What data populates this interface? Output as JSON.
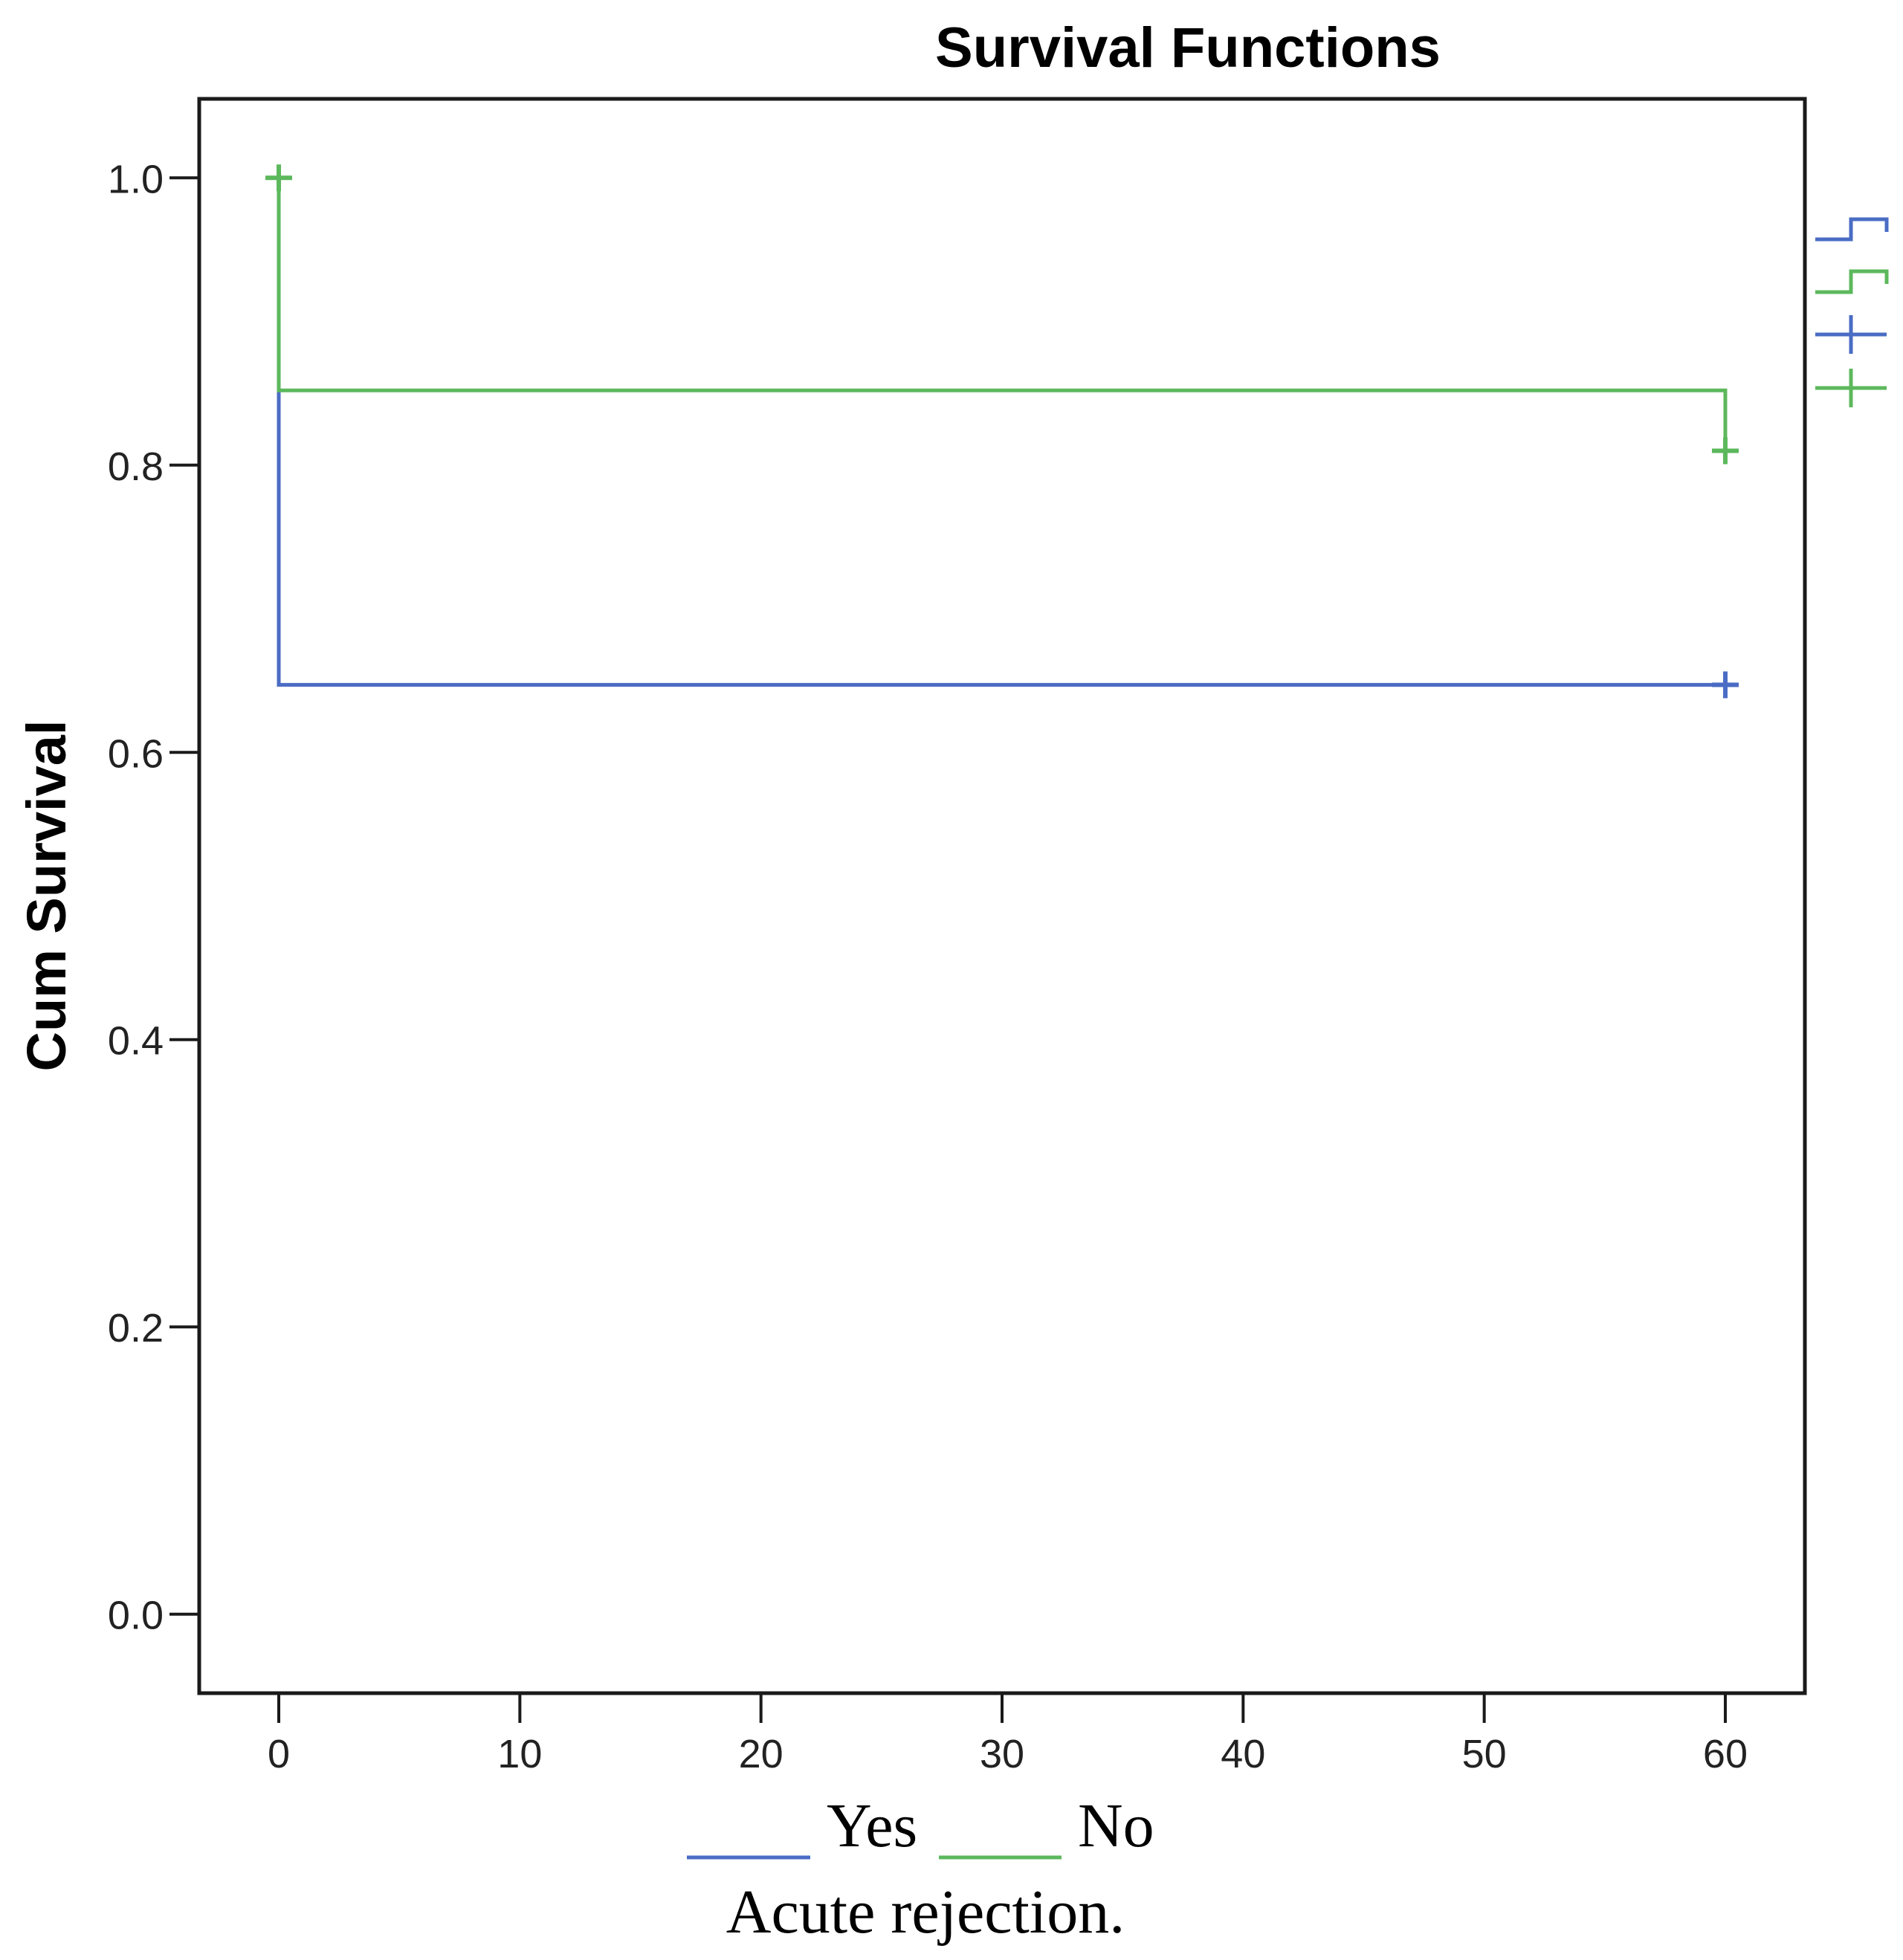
{
  "chart_data": {
    "type": "line",
    "title": "Survival Functions",
    "xlabel": "",
    "ylabel": "Cum Survival",
    "xlim": [
      -3.3,
      63.3
    ],
    "ylim": [
      -0.055,
      1.055
    ],
    "x_ticks": [
      0,
      10,
      20,
      30,
      40,
      50,
      60
    ],
    "y_ticks": [
      0.0,
      0.2,
      0.4,
      0.6,
      0.8,
      1.0
    ],
    "x_tick_labels": [
      "0",
      "10",
      "20",
      "30",
      "40",
      "50",
      "60"
    ],
    "y_tick_labels": [
      "0.0",
      "0.2",
      "0.4",
      "0.6",
      "0.8",
      "1.0"
    ],
    "grid": false,
    "series": [
      {
        "name": "Yes",
        "color": "#4a6cc4",
        "step": [
          [
            0,
            1.0
          ],
          [
            0,
            0.647
          ],
          [
            60,
            0.647
          ]
        ],
        "censored": [
          [
            60,
            0.647
          ]
        ]
      },
      {
        "name": "No",
        "color": "#5cb85c",
        "step": [
          [
            0,
            1.0
          ],
          [
            0,
            0.852
          ],
          [
            60,
            0.852
          ],
          [
            60,
            0.81
          ]
        ],
        "censored": [
          [
            0,
            1.0
          ],
          [
            60,
            0.81
          ]
        ]
      }
    ],
    "legend": {
      "title": "Acute rejection.",
      "placement": "bottom",
      "entries": [
        "Yes",
        "No"
      ]
    },
    "side_legend_symbols": [
      "step-blue-icon",
      "step-green-icon",
      "censor-blue-icon",
      "censor-green-icon"
    ]
  }
}
